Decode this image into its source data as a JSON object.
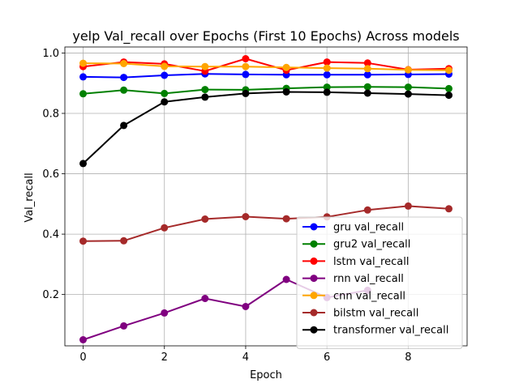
{
  "chart_data": {
    "type": "line",
    "title": "yelp Val_recall over Epochs (First 10 Epochs) Across models",
    "xlabel": "Epoch",
    "ylabel": "Val_recall",
    "x": [
      0,
      1,
      2,
      3,
      4,
      5,
      6,
      7,
      8,
      9
    ],
    "xlim": [
      -0.45,
      9.45
    ],
    "ylim": [
      0.03,
      1.02
    ],
    "xticks": [
      0,
      2,
      4,
      6,
      8
    ],
    "yticks": [
      0.2,
      0.4,
      0.6,
      0.8,
      1.0
    ],
    "xtick_labels": [
      "0",
      "2",
      "4",
      "6",
      "8"
    ],
    "ytick_labels": [
      "0.2",
      "0.4",
      "0.6",
      "0.8",
      "1.0"
    ],
    "grid": true,
    "legend_position": "lower-right",
    "series": [
      {
        "name": "gru val_recall",
        "color": "#0000ff",
        "values": [
          0.921,
          0.919,
          0.926,
          0.931,
          0.929,
          0.928,
          0.928,
          0.928,
          0.929,
          0.93
        ]
      },
      {
        "name": "gru2 val_recall",
        "color": "#008000",
        "values": [
          0.865,
          0.877,
          0.866,
          0.879,
          0.878,
          0.883,
          0.887,
          0.888,
          0.887,
          0.882
        ]
      },
      {
        "name": "lstm val_recall",
        "color": "#ff0000",
        "values": [
          0.955,
          0.97,
          0.964,
          0.94,
          0.981,
          0.943,
          0.97,
          0.967,
          0.945,
          0.948
        ]
      },
      {
        "name": "rnn val_recall",
        "color": "#800080",
        "values": [
          0.05,
          0.096,
          0.139,
          0.187,
          0.16,
          0.25,
          0.19,
          0.214,
          null,
          null
        ]
      },
      {
        "name": "cnn val_recall",
        "color": "#ffa500",
        "values": [
          0.966,
          0.965,
          0.956,
          0.955,
          0.955,
          0.952,
          0.95,
          0.948,
          0.944,
          0.943
        ]
      },
      {
        "name": "bilstm val_recall",
        "color": "#a52a2a",
        "values": [
          0.377,
          0.378,
          0.421,
          0.45,
          0.458,
          0.451,
          0.457,
          0.48,
          0.493,
          0.484
        ]
      },
      {
        "name": "transformer val_recall",
        "color": "#000000",
        "values": [
          0.634,
          0.76,
          0.838,
          0.854,
          0.866,
          0.871,
          0.87,
          0.867,
          0.864,
          0.86
        ]
      }
    ]
  }
}
